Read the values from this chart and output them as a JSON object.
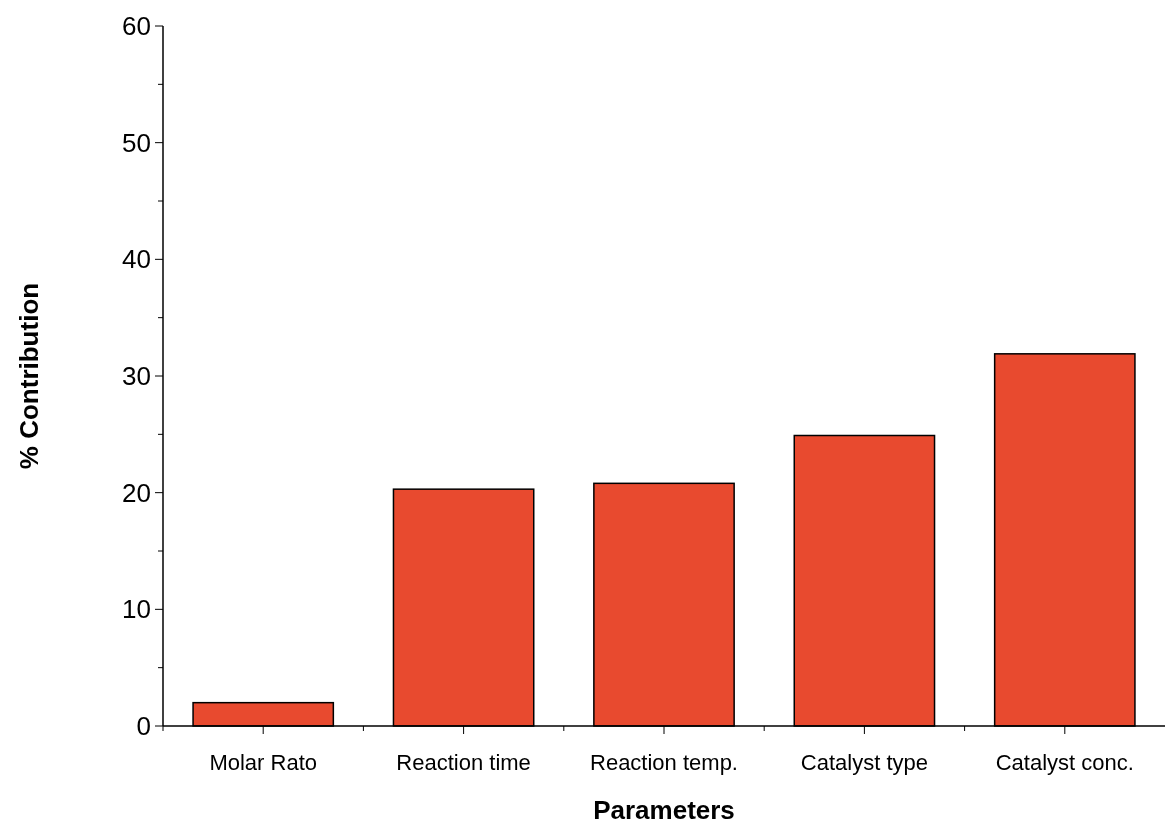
{
  "chart_data": {
    "type": "bar",
    "xlabel": "Parameters",
    "ylabel": "% Contribution",
    "categories": [
      "Molar Rato",
      "Reaction time",
      "Reaction temp.",
      "Catalyst type",
      "Catalyst conc."
    ],
    "values": [
      2.0,
      20.3,
      20.8,
      24.9,
      31.9
    ],
    "color": "#e84a2f",
    "ylim": [
      0,
      60
    ],
    "yticks": [
      0,
      10,
      20,
      30,
      40,
      50,
      60
    ],
    "grid": false
  }
}
